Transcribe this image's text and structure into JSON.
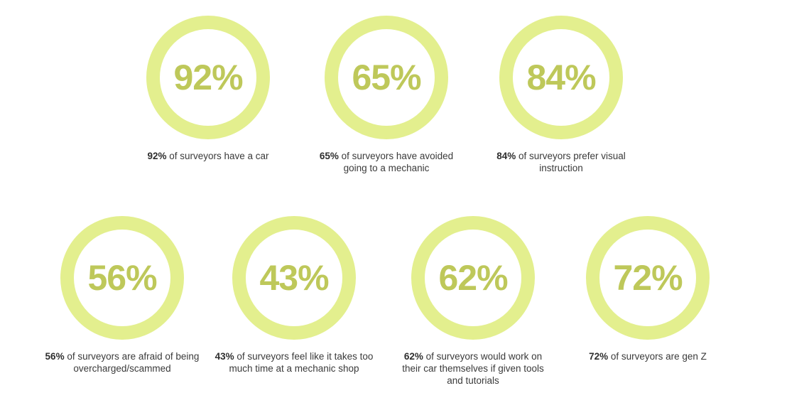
{
  "colors": {
    "dark": "#bec85a",
    "light": "#e3ef8e",
    "text": "#3a3a3a"
  },
  "chart_data": [
    {
      "type": "pie",
      "title": "92%",
      "value": 92,
      "bold": "92%",
      "caption_rest": " of surveyors have a car"
    },
    {
      "type": "pie",
      "title": "65%",
      "value": 65,
      "bold": "65%",
      "caption_rest": " of surveyors have avoided going to a mechanic"
    },
    {
      "type": "pie",
      "title": "84%",
      "value": 84,
      "bold": "84%",
      "caption_rest": " of surveyors prefer visual instruction"
    },
    {
      "type": "pie",
      "title": "56%",
      "value": 56,
      "bold": "56%",
      "caption_rest": " of surveyors are afraid of being overcharged/scammed"
    },
    {
      "type": "pie",
      "title": "43%",
      "value": 43,
      "bold": "43%",
      "caption_rest": " of surveyors feel like it takes too much time at a mechanic shop"
    },
    {
      "type": "pie",
      "title": "62%",
      "value": 62,
      "bold": "62%",
      "caption_rest": " of surveyors would work on their car themselves if given tools and tutorials"
    },
    {
      "type": "pie",
      "title": "72%",
      "value": 72,
      "bold": "72%",
      "caption_rest": " of surveyors are gen Z"
    }
  ]
}
